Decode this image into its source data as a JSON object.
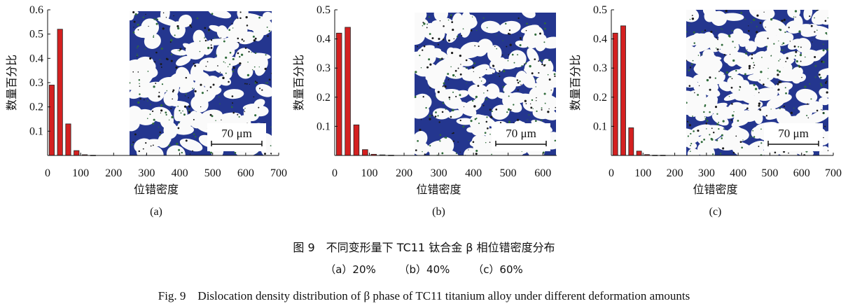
{
  "chart_data": [
    {
      "type": "bar",
      "panel_label": "(a)",
      "xlabel": "位错密度",
      "ylabel": "数量百分比",
      "x": [
        25,
        50,
        75,
        100,
        125,
        150
      ],
      "values": [
        0.29,
        0.52,
        0.13,
        0.02,
        0.003,
        0.001
      ],
      "xlim": [
        0,
        700
      ],
      "ylim": [
        0,
        0.6
      ],
      "xticks": [
        0,
        100,
        200,
        300,
        400,
        500,
        600,
        700
      ],
      "yticks": [
        0.1,
        0.2,
        0.3,
        0.4,
        0.5,
        0.6
      ],
      "bar_color": "#d42020",
      "inset_scale_bar": "70 μm"
    },
    {
      "type": "bar",
      "panel_label": "(b)",
      "xlabel": "位错密度",
      "ylabel": "数量百分比",
      "x": [
        25,
        50,
        75,
        100,
        125,
        150,
        175
      ],
      "values": [
        0.42,
        0.44,
        0.105,
        0.02,
        0.004,
        0.002,
        0.001
      ],
      "xlim": [
        0,
        640
      ],
      "ylim": [
        0,
        0.5
      ],
      "xticks": [
        0,
        100,
        200,
        300,
        400,
        500,
        600
      ],
      "yticks": [
        0.1,
        0.2,
        0.3,
        0.4,
        0.5
      ],
      "bar_color": "#d42020",
      "inset_scale_bar": "70 μm"
    },
    {
      "type": "bar",
      "panel_label": "(c)",
      "xlabel": "位错密度",
      "ylabel": "数量百分比",
      "x": [
        25,
        50,
        75,
        100,
        125,
        150,
        175
      ],
      "values": [
        0.42,
        0.445,
        0.095,
        0.015,
        0.003,
        0.001,
        0.001
      ],
      "xlim": [
        0,
        700
      ],
      "ylim": [
        0,
        0.5
      ],
      "xticks": [
        0,
        100,
        200,
        300,
        400,
        500,
        600,
        700
      ],
      "yticks": [
        0.1,
        0.2,
        0.3,
        0.4,
        0.5
      ],
      "bar_color": "#d42020",
      "inset_scale_bar": "70 μm"
    }
  ],
  "caption": {
    "chinese": "图 9　不同变形量下 TC11 钛合金 β 相位错密度分布",
    "subcaptions": [
      "（a）20%",
      "（b）40%",
      "（c）60%"
    ],
    "english": "Fig. 9　Dislocation density distribution of β phase of TC11 titanium alloy under different deformation amounts"
  }
}
